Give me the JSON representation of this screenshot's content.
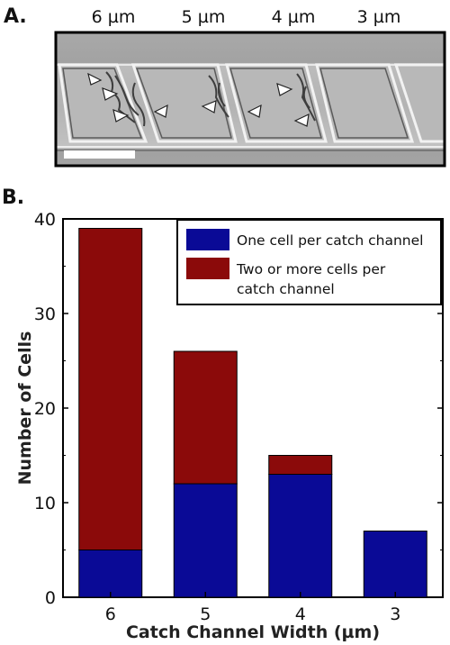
{
  "panel_a": {
    "label": "A.",
    "channel_widths": [
      "6 µm",
      "5 µm",
      "4 µm",
      "3 µm"
    ]
  },
  "panel_b": {
    "label": "B."
  },
  "chart_data": {
    "type": "bar",
    "stacked": true,
    "title": "",
    "xlabel": "Catch Channel Width (µm)",
    "ylabel": "Number of Cells",
    "categories": [
      "6",
      "5",
      "4",
      "3"
    ],
    "ylim": [
      0,
      40
    ],
    "yticks": [
      0,
      10,
      20,
      30,
      40
    ],
    "grid": false,
    "legend_position": "top-right",
    "series": [
      {
        "name": "One cell per catch channel",
        "values": [
          5,
          12,
          13,
          7
        ],
        "color": "#0a0a96"
      },
      {
        "name": "Two or more cells per catch channel",
        "values": [
          34,
          14,
          2,
          0
        ],
        "color": "#8b0a0a"
      }
    ],
    "legend_lines": [
      [
        "One cell per catch channel"
      ],
      [
        "Two or more cells per",
        "catch channel"
      ]
    ]
  }
}
